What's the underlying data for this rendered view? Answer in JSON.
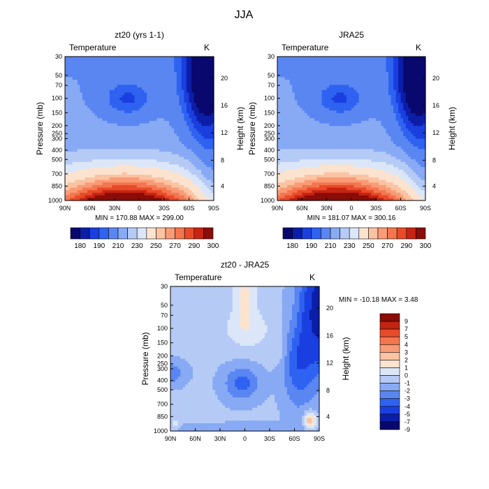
{
  "figure_title": "JJA",
  "chart_data": [
    {
      "type": "heatmap",
      "title": "zt20 (yrs 1-1)",
      "subtitle": "Temperature",
      "units": "K",
      "ylabel": "Pressure (mb)",
      "y2label": "Height (km)",
      "x_ticks": [
        "90N",
        "60N",
        "30N",
        "0",
        "30S",
        "60S",
        "90S"
      ],
      "y_ticks": [
        "30",
        "50",
        "70",
        "100",
        "150",
        "200",
        "250",
        "300",
        "400",
        "500",
        "700",
        "850",
        "1000"
      ],
      "y2_ticks": [
        "20",
        "16",
        "12",
        "8",
        "4"
      ],
      "stats": "MIN = 170.88   MAX = 299.00",
      "colorbar_labels": [
        "180",
        "190",
        "210",
        "230",
        "250",
        "270",
        "290",
        "300"
      ]
    },
    {
      "type": "heatmap",
      "title": "JRA25",
      "subtitle": "Temperature",
      "units": "K",
      "ylabel": "Pressure (mb)",
      "y2label": "Height (km)",
      "x_ticks": [
        "90N",
        "60N",
        "30N",
        "0",
        "30S",
        "60S",
        "90S"
      ],
      "y_ticks": [
        "30",
        "50",
        "70",
        "100",
        "150",
        "200",
        "250",
        "300",
        "400",
        "500",
        "700",
        "850",
        "1000"
      ],
      "y2_ticks": [
        "20",
        "16",
        "12",
        "8",
        "4"
      ],
      "stats": "MIN = 181.07   MAX = 300.16",
      "colorbar_labels": [
        "180",
        "190",
        "210",
        "230",
        "250",
        "270",
        "290",
        "300"
      ]
    },
    {
      "type": "heatmap",
      "title": "zt20 - JRA25",
      "subtitle": "Temperature",
      "units": "K",
      "ylabel": "Pressure (mb)",
      "y2label": "Height (km)",
      "x_ticks": [
        "90N",
        "60N",
        "30N",
        "0",
        "30S",
        "60S",
        "90S"
      ],
      "y_ticks": [
        "30",
        "50",
        "70",
        "100",
        "150",
        "200",
        "250",
        "300",
        "400",
        "500",
        "700",
        "850",
        "1000"
      ],
      "y2_ticks": [
        "20",
        "16",
        "12",
        "8",
        "4"
      ],
      "stats": "MIN = -10.18   MAX =    3.48",
      "colorbar_labels": [
        "9",
        "7",
        "5",
        "4",
        "3",
        "2",
        "1",
        "0",
        "-1",
        "-2",
        "-3",
        "-4",
        "-5",
        "-7",
        "-9"
      ]
    }
  ],
  "colors": {
    "abs_scale": [
      "#08086e",
      "#0c1ea8",
      "#1a3fe0",
      "#2f62f0",
      "#5a86f2",
      "#88aaf4",
      "#b5cbf6",
      "#dbe6f8",
      "#fbe3cf",
      "#fbc3a2",
      "#f99b76",
      "#f3764f",
      "#e84b2a",
      "#c82412",
      "#8a0d08"
    ],
    "diff_scale": [
      "#8a0d08",
      "#c02412",
      "#e84b2a",
      "#f3764f",
      "#f99b76",
      "#fbc3a2",
      "#fbe3cf",
      "#dbe6f8",
      "#b5cbf6",
      "#88aaf4",
      "#5a86f2",
      "#2f62f0",
      "#1a3fe0",
      "#0c1ea8",
      "#08086e"
    ]
  }
}
